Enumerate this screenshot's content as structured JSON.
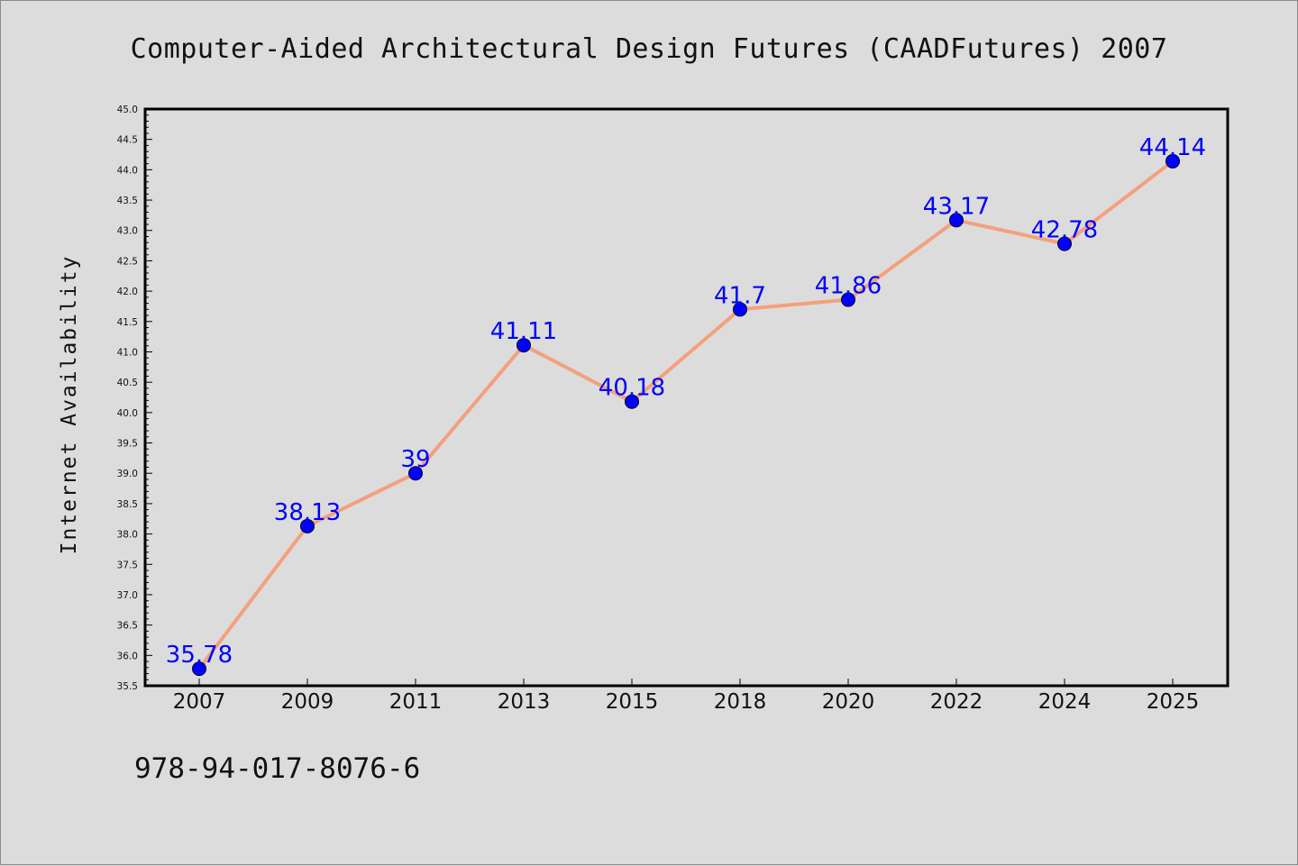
{
  "title": "Computer-Aided Architectural Design Futures (CAADFutures) 2007",
  "footer_text": "978-94-017-8076-6",
  "chart_data": {
    "type": "line",
    "ylabel": "Internet Availability",
    "xlabel": "",
    "categories": [
      "2007",
      "2009",
      "2011",
      "2013",
      "2015",
      "2018",
      "2020",
      "2022",
      "2024",
      "2025"
    ],
    "series": [
      {
        "values": [
          35.78,
          38.13,
          39,
          41.11,
          40.18,
          41.7,
          41.86,
          43.17,
          42.78,
          44.14
        ],
        "data_labels": [
          "35.78",
          "38.13",
          "39",
          "41.11",
          "40.18",
          "41.7",
          "41.86",
          "43.17",
          "42.78",
          "44.14"
        ],
        "line_color": "#f4a07e",
        "marker_color": "#0000ff"
      }
    ],
    "ylim": [
      35.5,
      45.0
    ],
    "ytick_step": 0.5,
    "grid": false,
    "legend": "none",
    "label_color": "#0000ff"
  }
}
